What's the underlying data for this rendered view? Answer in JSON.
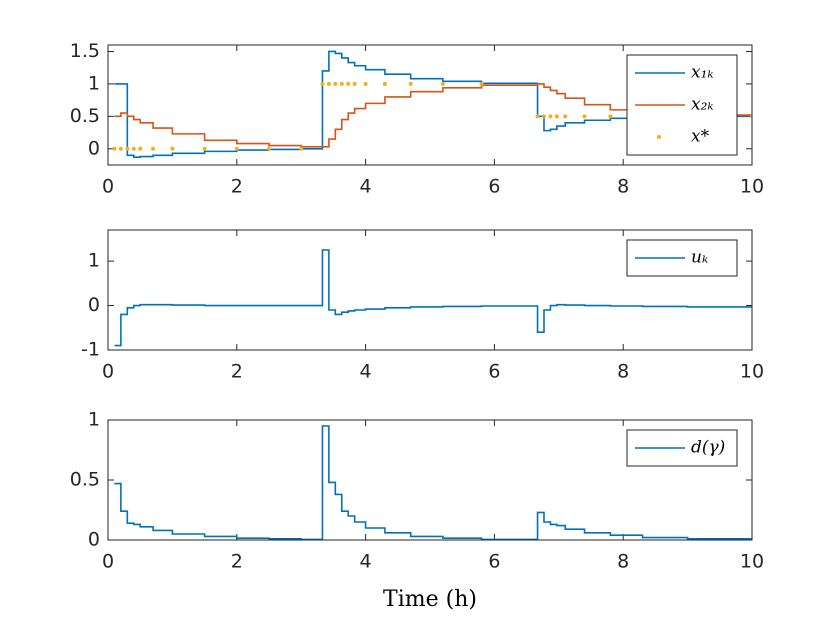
{
  "chart_data": [
    {
      "type": "line",
      "step": true,
      "x": [
        0.1,
        0.2,
        0.3,
        0.4,
        0.5,
        0.7,
        1.0,
        1.5,
        2.0,
        2.5,
        3.0,
        3.33,
        3.43,
        3.53,
        3.63,
        3.73,
        3.83,
        4.0,
        4.3,
        4.7,
        5.2,
        5.8,
        6.67,
        6.77,
        6.87,
        6.97,
        7.1,
        7.4,
        7.8,
        8.3,
        9.0,
        10.0
      ],
      "series": [
        {
          "name": "x₁ₖ",
          "color": "#0072bd",
          "values": [
            1,
            1,
            -0.1,
            -0.13,
            -0.12,
            -0.1,
            -0.07,
            -0.04,
            -0.02,
            -0.01,
            0,
            1.2,
            1.5,
            1.47,
            1.4,
            1.33,
            1.28,
            1.22,
            1.15,
            1.08,
            1.04,
            1.01,
            0.5,
            0.28,
            0.3,
            0.35,
            0.4,
            0.44,
            0.47,
            0.49,
            0.5,
            0.5
          ]
        },
        {
          "name": "x₂ₖ",
          "color": "#d95319",
          "values": [
            0.5,
            0.55,
            0.5,
            0.45,
            0.4,
            0.32,
            0.23,
            0.13,
            0.08,
            0.05,
            0.03,
            0.03,
            0.15,
            0.3,
            0.45,
            0.55,
            0.62,
            0.7,
            0.8,
            0.88,
            0.94,
            0.98,
            1,
            0.95,
            0.9,
            0.85,
            0.78,
            0.68,
            0.6,
            0.55,
            0.52,
            0.5
          ]
        },
        {
          "name": "x*",
          "color": "#edb120",
          "marker": "dot",
          "values": [
            0,
            0,
            0,
            0,
            0,
            0,
            0,
            0,
            0,
            0,
            0,
            1,
            1,
            1,
            1,
            1,
            1,
            1,
            1,
            1,
            1,
            1,
            0.5,
            0.5,
            0.5,
            0.5,
            0.5,
            0.5,
            0.5,
            0.5,
            0.5,
            0.5
          ]
        }
      ],
      "xlim": [
        0,
        10
      ],
      "xticks": [
        0,
        2,
        4,
        6,
        8,
        10
      ],
      "ylim": [
        -0.25,
        1.6
      ],
      "yticks": [
        0,
        0.5,
        1,
        1.5
      ],
      "legend": "upper right"
    },
    {
      "type": "line",
      "step": true,
      "x": [
        0.1,
        0.2,
        0.3,
        0.4,
        0.5,
        0.7,
        1.0,
        1.5,
        2.0,
        2.5,
        3.0,
        3.33,
        3.43,
        3.53,
        3.63,
        3.73,
        3.83,
        4.0,
        4.3,
        4.7,
        5.2,
        5.8,
        6.67,
        6.77,
        6.87,
        6.97,
        7.1,
        7.4,
        7.8,
        8.3,
        9.0,
        10.0
      ],
      "series": [
        {
          "name": "uₖ",
          "color": "#0072bd",
          "values": [
            -0.9,
            -0.2,
            -0.05,
            0,
            0.02,
            0.02,
            0.01,
            0,
            0,
            0,
            0,
            1.25,
            -0.1,
            -0.2,
            -0.15,
            -0.12,
            -0.1,
            -0.08,
            -0.05,
            -0.03,
            -0.02,
            -0.01,
            -0.6,
            -0.1,
            0,
            0.02,
            0.01,
            0,
            -0.01,
            -0.02,
            -0.03,
            -0.02
          ]
        }
      ],
      "xlim": [
        0,
        10
      ],
      "xticks": [
        0,
        2,
        4,
        6,
        8,
        10
      ],
      "ylim": [
        -1,
        1.7
      ],
      "yticks": [
        -1,
        0,
        1
      ],
      "legend": "upper right"
    },
    {
      "type": "line",
      "step": true,
      "xlabel": "Time (h)",
      "x": [
        0.1,
        0.2,
        0.3,
        0.4,
        0.5,
        0.7,
        1.0,
        1.5,
        2.0,
        2.5,
        3.0,
        3.33,
        3.43,
        3.53,
        3.63,
        3.73,
        3.83,
        4.0,
        4.3,
        4.7,
        5.2,
        5.8,
        6.67,
        6.77,
        6.87,
        6.97,
        7.1,
        7.4,
        7.8,
        8.3,
        9.0,
        10.0
      ],
      "series": [
        {
          "name": "d(γ)",
          "color": "#0072bd",
          "values": [
            0.47,
            0.24,
            0.14,
            0.13,
            0.11,
            0.08,
            0.05,
            0.03,
            0.015,
            0.01,
            0.005,
            0.95,
            0.48,
            0.38,
            0.24,
            0.2,
            0.15,
            0.1,
            0.06,
            0.03,
            0.015,
            0.005,
            0.23,
            0.15,
            0.13,
            0.12,
            0.09,
            0.06,
            0.04,
            0.02,
            0.01,
            0.005
          ]
        }
      ],
      "xlim": [
        0,
        10
      ],
      "xticks": [
        0,
        2,
        4,
        6,
        8,
        10
      ],
      "ylim": [
        0,
        1
      ],
      "yticks": [
        0,
        0.5,
        1
      ],
      "legend": "upper right"
    }
  ]
}
